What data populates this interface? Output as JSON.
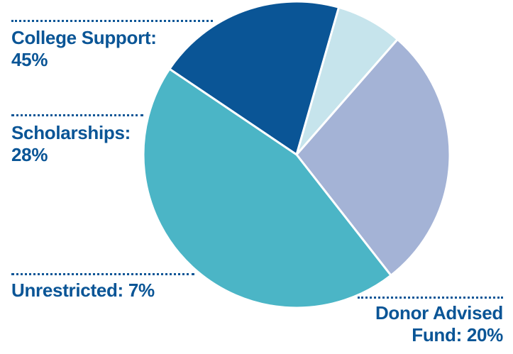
{
  "chart_data": {
    "type": "pie",
    "categories": [
      "College Support",
      "Scholarships",
      "Unrestricted",
      "Donor Advised Fund"
    ],
    "values": [
      45,
      28,
      7,
      20
    ],
    "labels": {
      "college": [
        "College Support:",
        "45%"
      ],
      "scholarships": [
        "Scholarships:",
        "28%"
      ],
      "unrestricted": [
        "Unrestricted: 7%"
      ],
      "donor": [
        "Donor Advised",
        "Fund: 20%"
      ]
    },
    "colors": {
      "Donor Advised Fund": "#0a5596",
      "Unrestricted": "#c6e4ec",
      "Scholarships": "#a4b3d6",
      "College Support": "#4bb5c6",
      "label_text": "#0a5596"
    }
  }
}
